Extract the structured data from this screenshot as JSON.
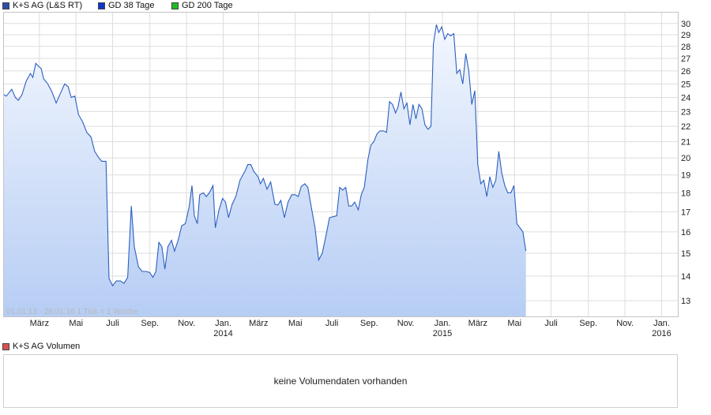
{
  "legend": {
    "items": [
      {
        "label": "K+S AG (L&S RT)",
        "color": "#2c4fa8"
      },
      {
        "label": "GD 38 Tage",
        "color": "#1133cc"
      },
      {
        "label": "GD 200 Tage",
        "color": "#22bb22"
      }
    ]
  },
  "chart_data": {
    "type": "area",
    "title": "",
    "xlabel": "",
    "ylabel": "",
    "scale": "log",
    "ylim": [
      12.4,
      31.0
    ],
    "y_ticks": [
      13,
      14,
      15,
      16,
      17,
      18,
      19,
      20,
      21,
      22,
      23,
      24,
      25,
      26,
      27,
      28,
      29,
      30
    ],
    "x_range": [
      "2013-01-01",
      "2016-01-28"
    ],
    "x_ticks": [
      {
        "label": "März",
        "date": "2013-03-01"
      },
      {
        "label": "Mai",
        "date": "2013-05-01"
      },
      {
        "label": "Juli",
        "date": "2013-07-01"
      },
      {
        "label": "Sep.",
        "date": "2013-09-01"
      },
      {
        "label": "Nov.",
        "date": "2013-11-01"
      },
      {
        "label": "Jan.",
        "year": "2014",
        "date": "2014-01-01"
      },
      {
        "label": "März",
        "date": "2014-03-01"
      },
      {
        "label": "Mai",
        "date": "2014-05-01"
      },
      {
        "label": "Juli",
        "date": "2014-07-01"
      },
      {
        "label": "Sep.",
        "date": "2014-09-01"
      },
      {
        "label": "Nov.",
        "date": "2014-11-01"
      },
      {
        "label": "Jan.",
        "year": "2015",
        "date": "2015-01-01"
      },
      {
        "label": "März",
        "date": "2015-03-01"
      },
      {
        "label": "Mai",
        "date": "2015-05-01"
      },
      {
        "label": "Juli",
        "date": "2015-07-01"
      },
      {
        "label": "Sep.",
        "date": "2015-09-01"
      },
      {
        "label": "Nov.",
        "date": "2015-11-01"
      },
      {
        "label": "Jan.",
        "year": "2016",
        "date": "2016-01-01"
      }
    ],
    "grid": true,
    "range_label": "01.01.13 - 28.01.16   1 Tick = 1 Woche",
    "series": [
      {
        "name": "K+S AG (L&S RT)",
        "color": "#2c5fc0",
        "points": [
          [
            "2013-01-01",
            24.2
          ],
          [
            "2013-01-05",
            24.1
          ],
          [
            "2013-01-14",
            24.6
          ],
          [
            "2013-01-20",
            24.0
          ],
          [
            "2013-01-25",
            23.8
          ],
          [
            "2013-01-31",
            24.2
          ],
          [
            "2013-02-07",
            25.2
          ],
          [
            "2013-02-14",
            25.8
          ],
          [
            "2013-02-18",
            25.5
          ],
          [
            "2013-02-23",
            26.6
          ],
          [
            "2013-03-01",
            26.3
          ],
          [
            "2013-03-04",
            26.2
          ],
          [
            "2013-03-08",
            25.4
          ],
          [
            "2013-03-15",
            25.0
          ],
          [
            "2013-03-22",
            24.4
          ],
          [
            "2013-03-29",
            23.6
          ],
          [
            "2013-04-05",
            24.3
          ],
          [
            "2013-04-12",
            25.0
          ],
          [
            "2013-04-18",
            24.8
          ],
          [
            "2013-04-23",
            24.0
          ],
          [
            "2013-04-29",
            24.1
          ],
          [
            "2013-05-05",
            22.8
          ],
          [
            "2013-05-12",
            22.3
          ],
          [
            "2013-05-19",
            21.6
          ],
          [
            "2013-05-26",
            21.3
          ],
          [
            "2013-06-01",
            20.4
          ],
          [
            "2013-06-08",
            20.0
          ],
          [
            "2013-06-13",
            19.8
          ],
          [
            "2013-06-20",
            19.8
          ],
          [
            "2013-06-25",
            13.9
          ],
          [
            "2013-07-01",
            13.6
          ],
          [
            "2013-07-07",
            13.8
          ],
          [
            "2013-07-14",
            13.8
          ],
          [
            "2013-07-20",
            13.7
          ],
          [
            "2013-07-26",
            13.95
          ],
          [
            "2013-08-01",
            17.3
          ],
          [
            "2013-08-06",
            15.3
          ],
          [
            "2013-08-13",
            14.4
          ],
          [
            "2013-08-19",
            14.2
          ],
          [
            "2013-08-26",
            14.2
          ],
          [
            "2013-09-01",
            14.15
          ],
          [
            "2013-09-06",
            13.95
          ],
          [
            "2013-09-11",
            14.2
          ],
          [
            "2013-09-16",
            15.5
          ],
          [
            "2013-09-21",
            15.3
          ],
          [
            "2013-09-26",
            14.3
          ],
          [
            "2013-10-01",
            15.3
          ],
          [
            "2013-10-07",
            15.6
          ],
          [
            "2013-10-12",
            15.1
          ],
          [
            "2013-10-18",
            15.6
          ],
          [
            "2013-10-24",
            16.3
          ],
          [
            "2013-10-30",
            16.4
          ],
          [
            "2013-11-05",
            17.2
          ],
          [
            "2013-11-10",
            18.4
          ],
          [
            "2013-11-14",
            16.8
          ],
          [
            "2013-11-19",
            16.4
          ],
          [
            "2013-11-23",
            17.9
          ],
          [
            "2013-11-29",
            18.0
          ],
          [
            "2013-12-04",
            17.8
          ],
          [
            "2013-12-09",
            18.0
          ],
          [
            "2013-12-15",
            18.4
          ],
          [
            "2013-12-19",
            16.2
          ],
          [
            "2013-12-25",
            17.1
          ],
          [
            "2013-12-31",
            17.7
          ],
          [
            "2014-01-05",
            17.5
          ],
          [
            "2014-01-10",
            16.7
          ],
          [
            "2014-01-16",
            17.4
          ],
          [
            "2014-01-22",
            17.8
          ],
          [
            "2014-01-29",
            18.7
          ],
          [
            "2014-02-06",
            19.2
          ],
          [
            "2014-02-11",
            19.6
          ],
          [
            "2014-02-16",
            19.6
          ],
          [
            "2014-02-21",
            19.2
          ],
          [
            "2014-02-28",
            18.9
          ],
          [
            "2014-03-04",
            18.5
          ],
          [
            "2014-03-09",
            18.8
          ],
          [
            "2014-03-15",
            18.2
          ],
          [
            "2014-03-21",
            18.6
          ],
          [
            "2014-03-28",
            17.4
          ],
          [
            "2014-04-02",
            17.35
          ],
          [
            "2014-04-07",
            17.6
          ],
          [
            "2014-04-13",
            16.7
          ],
          [
            "2014-04-19",
            17.5
          ],
          [
            "2014-04-25",
            17.9
          ],
          [
            "2014-05-01",
            17.9
          ],
          [
            "2014-05-06",
            17.8
          ],
          [
            "2014-05-11",
            18.35
          ],
          [
            "2014-05-17",
            18.5
          ],
          [
            "2014-05-22",
            18.3
          ],
          [
            "2014-05-28",
            17.2
          ],
          [
            "2014-06-03",
            16.2
          ],
          [
            "2014-06-09",
            14.7
          ],
          [
            "2014-06-15",
            15.0
          ],
          [
            "2014-06-21",
            15.8
          ],
          [
            "2014-06-27",
            16.7
          ],
          [
            "2014-07-03",
            16.75
          ],
          [
            "2014-07-09",
            16.8
          ],
          [
            "2014-07-14",
            18.3
          ],
          [
            "2014-07-19",
            18.15
          ],
          [
            "2014-07-24",
            18.3
          ],
          [
            "2014-07-29",
            17.3
          ],
          [
            "2014-08-03",
            17.3
          ],
          [
            "2014-08-08",
            17.5
          ],
          [
            "2014-08-14",
            17.1
          ],
          [
            "2014-08-19",
            17.9
          ],
          [
            "2014-08-24",
            18.3
          ],
          [
            "2014-08-30",
            19.9
          ],
          [
            "2014-09-04",
            20.8
          ],
          [
            "2014-09-09",
            21.0
          ],
          [
            "2014-09-14",
            21.5
          ],
          [
            "2014-09-19",
            21.7
          ],
          [
            "2014-09-25",
            21.7
          ],
          [
            "2014-09-30",
            21.6
          ],
          [
            "2014-10-05",
            23.7
          ],
          [
            "2014-10-10",
            23.5
          ],
          [
            "2014-10-15",
            22.9
          ],
          [
            "2014-10-19",
            23.3
          ],
          [
            "2014-10-24",
            24.4
          ],
          [
            "2014-10-29",
            23.2
          ],
          [
            "2014-11-03",
            23.6
          ],
          [
            "2014-11-08",
            22.1
          ],
          [
            "2014-11-13",
            23.5
          ],
          [
            "2014-11-18",
            22.5
          ],
          [
            "2014-11-23",
            23.5
          ],
          [
            "2014-11-28",
            23.2
          ],
          [
            "2014-12-03",
            22.1
          ],
          [
            "2014-12-08",
            21.8
          ],
          [
            "2014-12-13",
            22.0
          ],
          [
            "2014-12-17",
            28.2
          ],
          [
            "2014-12-22",
            29.9
          ],
          [
            "2014-12-26",
            29.2
          ],
          [
            "2014-12-31",
            29.7
          ],
          [
            "2015-01-05",
            28.6
          ],
          [
            "2015-01-10",
            29.1
          ],
          [
            "2015-01-15",
            28.9
          ],
          [
            "2015-01-20",
            29.1
          ],
          [
            "2015-01-25",
            25.8
          ],
          [
            "2015-01-30",
            26.1
          ],
          [
            "2015-02-04",
            25.0
          ],
          [
            "2015-02-09",
            27.4
          ],
          [
            "2015-02-14",
            26.0
          ],
          [
            "2015-02-19",
            23.5
          ],
          [
            "2015-02-24",
            24.5
          ],
          [
            "2015-03-01",
            19.6
          ],
          [
            "2015-03-06",
            18.5
          ],
          [
            "2015-03-11",
            18.7
          ],
          [
            "2015-03-16",
            17.8
          ],
          [
            "2015-03-21",
            18.9
          ],
          [
            "2015-03-26",
            18.3
          ],
          [
            "2015-03-31",
            18.7
          ],
          [
            "2015-04-05",
            20.4
          ],
          [
            "2015-04-10",
            19.1
          ],
          [
            "2015-04-15",
            18.4
          ],
          [
            "2015-04-20",
            18.0
          ],
          [
            "2015-04-25",
            18.0
          ],
          [
            "2015-04-30",
            18.4
          ],
          [
            "2015-05-05",
            16.4
          ],
          [
            "2015-05-10",
            16.2
          ],
          [
            "2015-05-15",
            16.0
          ],
          [
            "2015-05-20",
            15.1
          ]
        ]
      }
    ]
  },
  "volume": {
    "legend_label": "K+S AG Volumen",
    "legend_color": "#d85050",
    "empty_text": "keine Volumendaten vorhanden"
  }
}
